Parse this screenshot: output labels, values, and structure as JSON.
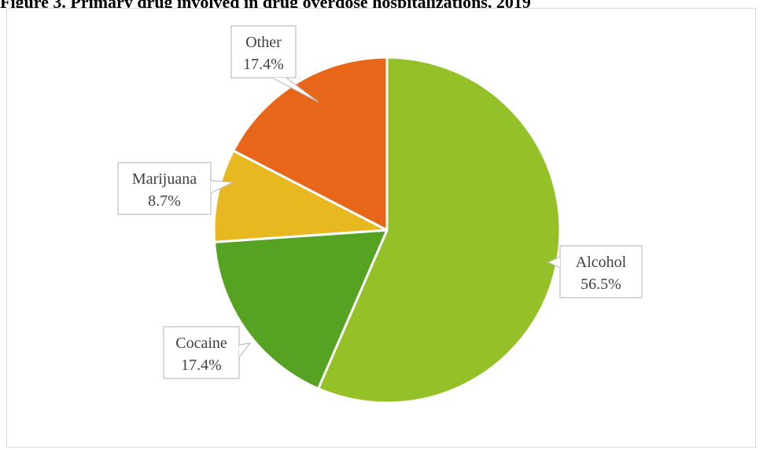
{
  "caption": "Figure 3. Primary drug involved in drug overdose hospitalizations, 2019",
  "chart_data": {
    "type": "pie",
    "title": "",
    "slices": [
      {
        "label": "Alcohol",
        "value": 56.5,
        "value_label": "56.5%",
        "color": "#93c127"
      },
      {
        "label": "Cocaine",
        "value": 17.4,
        "value_label": "17.4%",
        "color": "#56a222"
      },
      {
        "label": "Marijuana",
        "value": 8.7,
        "value_label": "8.7%",
        "color": "#e7b820"
      },
      {
        "label": "Other",
        "value": 17.4,
        "value_label": "17.4%",
        "color": "#e8661a"
      }
    ],
    "start_angle_deg": 0,
    "direction": "clockwise",
    "slice_border_color": "#ffffff",
    "callout_border_color": "#bfbfbf"
  }
}
